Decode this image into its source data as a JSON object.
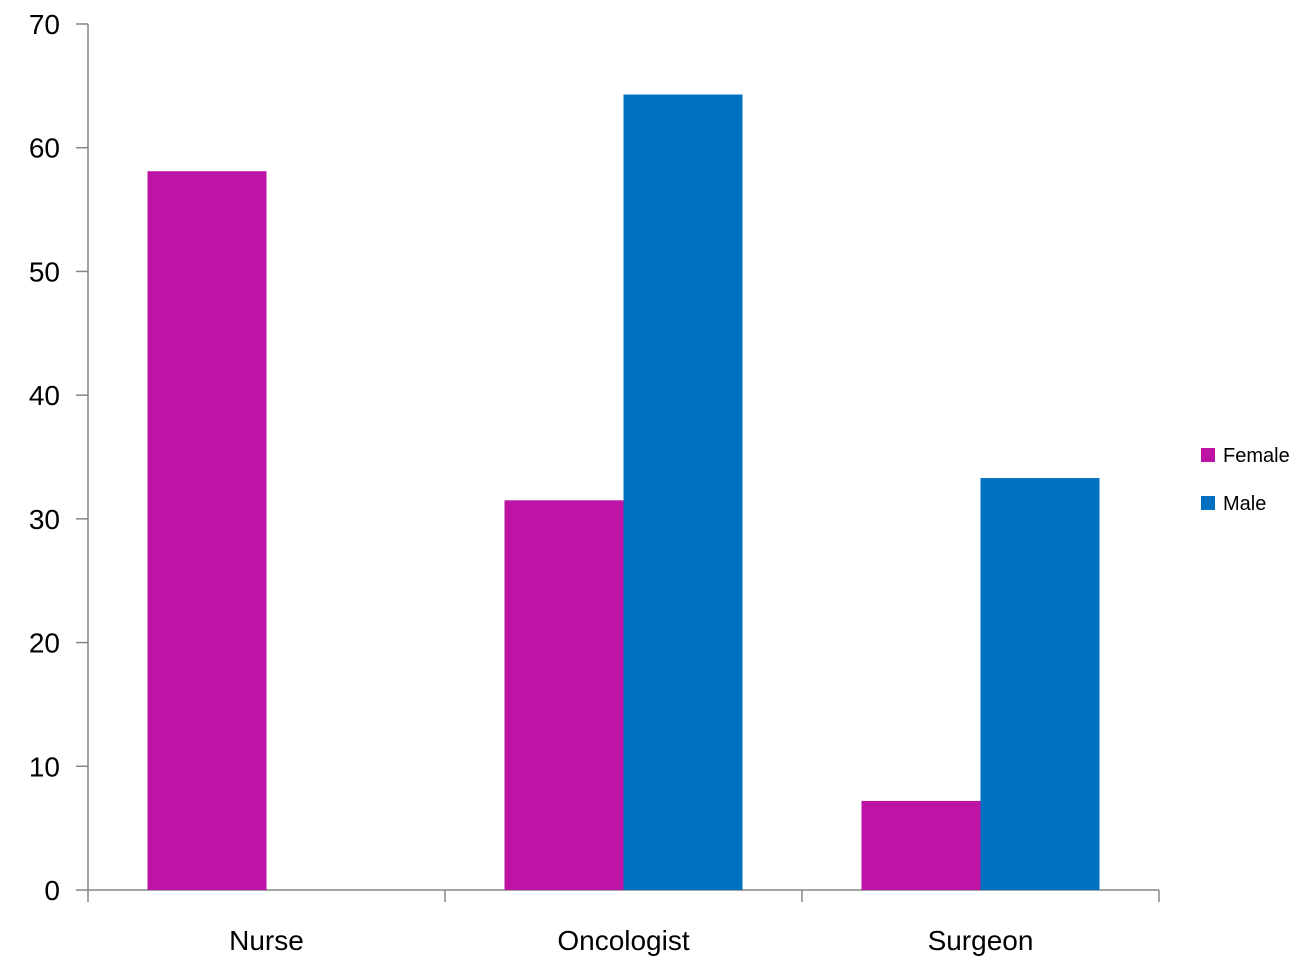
{
  "chart_data": {
    "type": "bar",
    "title": "",
    "xlabel": "",
    "ylabel": "",
    "categories": [
      "Nurse",
      "Oncologist",
      "Surgeon"
    ],
    "series": [
      {
        "name": "Female",
        "color": "#BE14A6",
        "values": [
          58.1,
          31.5,
          7.2
        ]
      },
      {
        "name": "Male",
        "color": "#0070C0",
        "values": [
          null,
          64.3,
          33.3
        ]
      }
    ],
    "ylim": [
      0,
      70
    ],
    "yticks": [
      0,
      10,
      20,
      30,
      40,
      50,
      60,
      70
    ],
    "grid": false,
    "legend_position": "right"
  }
}
